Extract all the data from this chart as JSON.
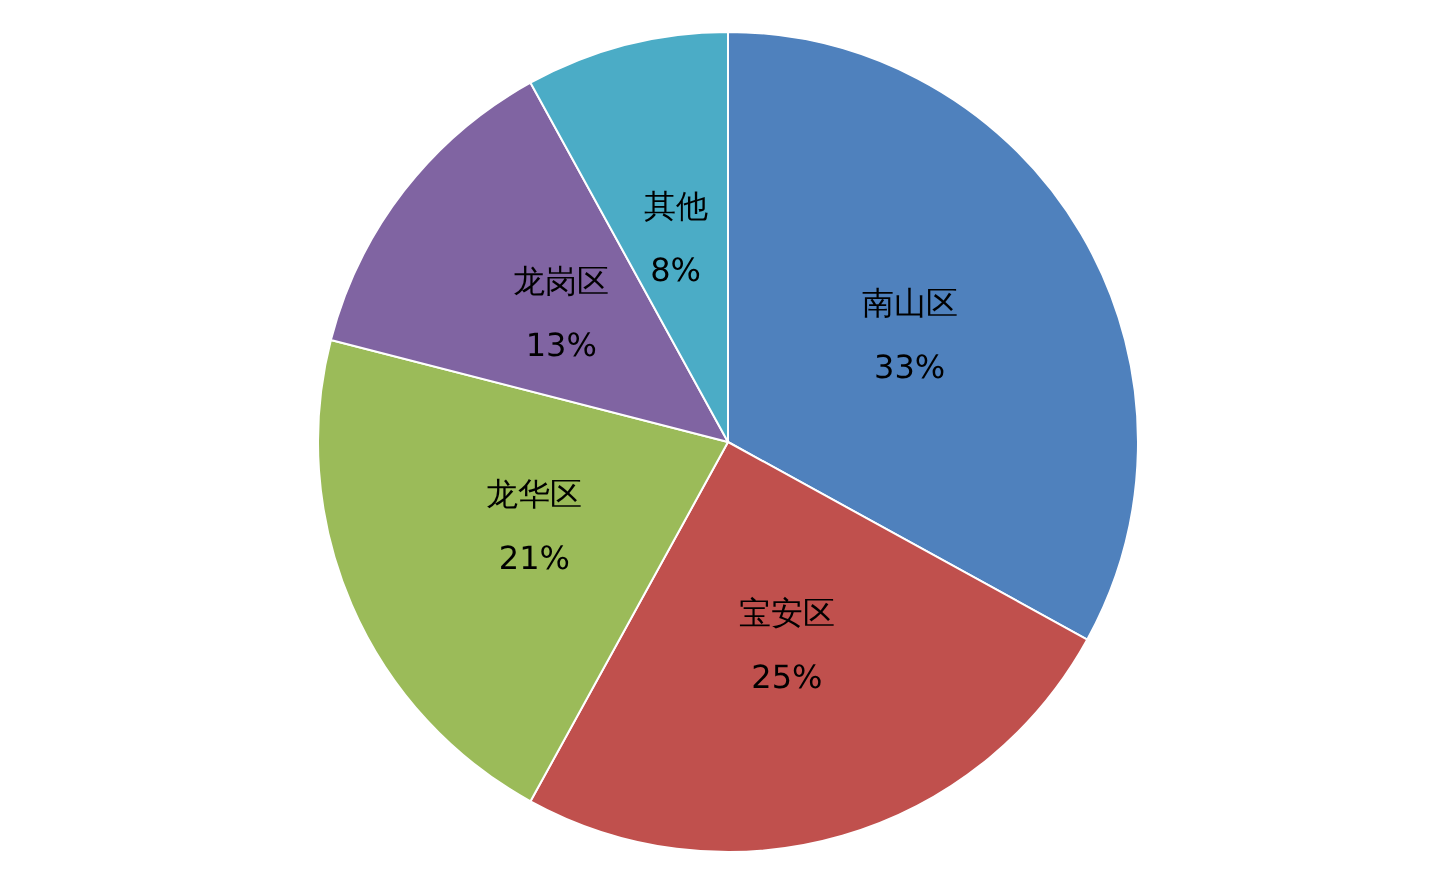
{
  "chart_data": {
    "type": "pie",
    "categories": [
      "南山区",
      "宝安区",
      "龙华区",
      "龙岗区",
      "其他"
    ],
    "values": [
      33,
      25,
      21,
      13,
      8
    ],
    "value_labels": [
      "33%",
      "25%",
      "21%",
      "13%",
      "8%"
    ],
    "colors": [
      "#4f81bd",
      "#c0504d",
      "#9bbb59",
      "#8064a2",
      "#4bacc6"
    ],
    "legend": false
  }
}
